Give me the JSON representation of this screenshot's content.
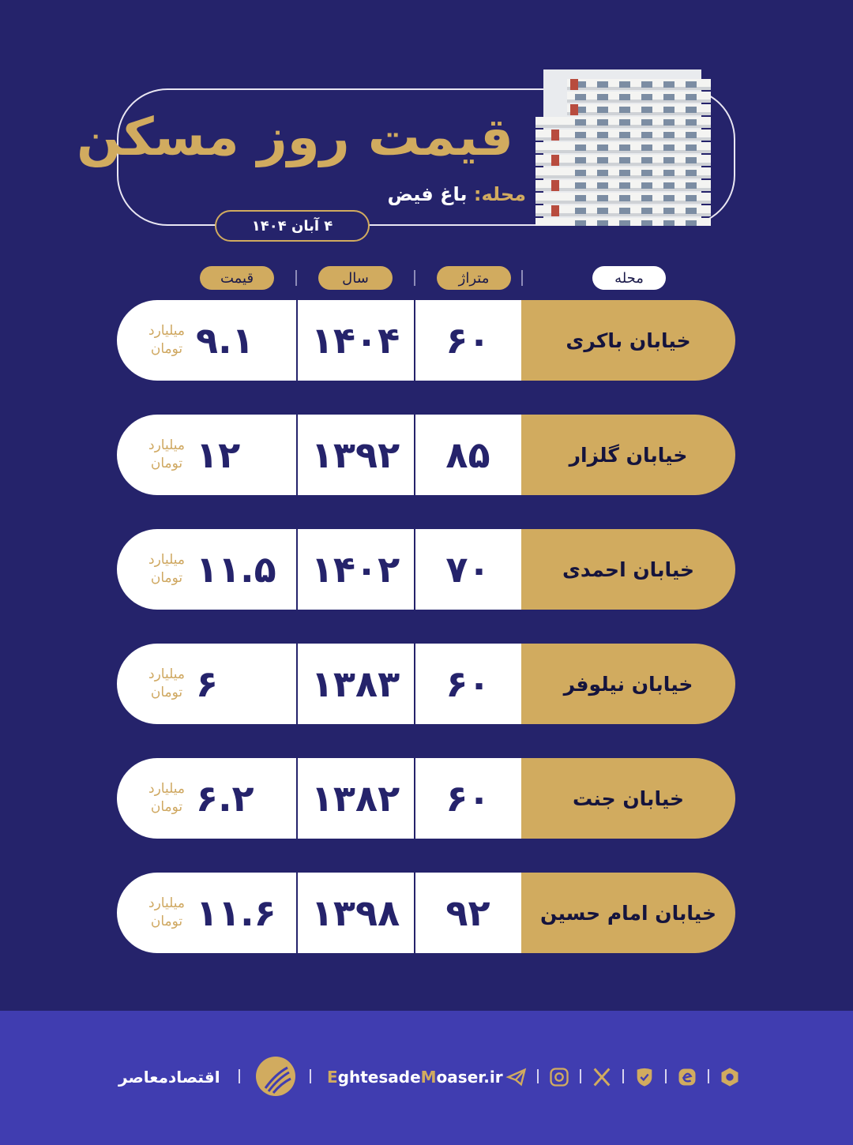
{
  "header": {
    "title": "قیمت روز مسکن",
    "subtitle_key": "محله:",
    "subtitle_value": "باغ فیض",
    "date": "۴ آبان ۱۴۰۴"
  },
  "columns": {
    "price": "قیمت",
    "year": "سال",
    "area": "متراژ",
    "neighborhood": "محله"
  },
  "unit_line1": "میلیارد",
  "unit_line2": "تومان",
  "rows": [
    {
      "neighborhood": "خیابان باکری",
      "area": "۶۰",
      "year": "۱۴۰۴",
      "price": "۹.۱"
    },
    {
      "neighborhood": "خیابان گلزار",
      "area": "۸۵",
      "year": "۱۳۹۲",
      "price": "۱۲"
    },
    {
      "neighborhood": "خیابان احمدی",
      "area": "۷۰",
      "year": "۱۴۰۲",
      "price": "۱۱.۵"
    },
    {
      "neighborhood": "خیابان نیلوفر",
      "area": "۶۰",
      "year": "۱۳۸۳",
      "price": "۶"
    },
    {
      "neighborhood": "خیابان جنت",
      "area": "۶۰",
      "year": "۱۳۸۲",
      "price": "۶.۲"
    },
    {
      "neighborhood": "خیابان امام حسین",
      "area": "۹۲",
      "year": "۱۳۹۸",
      "price": "۱۱.۶"
    }
  ],
  "footer": {
    "brand": "اقتصادمعاصر",
    "website_e": "E",
    "website_mid": "ghtesade",
    "website_m": "M",
    "website_rest": "oaser.ir",
    "icons": [
      "telegram-icon",
      "instagram-icon",
      "x-icon",
      "shield-check-icon",
      "eitaa-icon",
      "rubika-icon"
    ]
  },
  "colors": {
    "background": "#25236b",
    "gold": "#d1ab5f",
    "footer": "#403db0"
  }
}
